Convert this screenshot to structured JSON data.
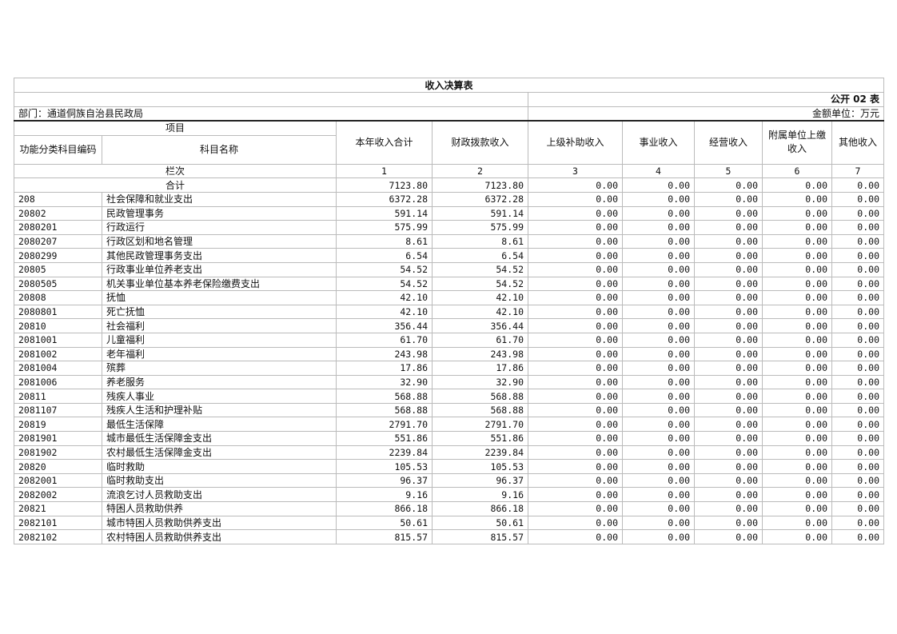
{
  "title": "收入决算表",
  "table_no": "公开 02 表",
  "department": "部门：通道侗族自治县民政局",
  "unit": "金额单位：万元",
  "header": {
    "item": "项目",
    "code": "功能分类科目编码",
    "name": "科目名称",
    "cols": [
      "本年收入合计",
      "财政拨款收入",
      "上级补助收入",
      "事业收入",
      "经营收入",
      "附属单位上缴收入",
      "其他收入"
    ],
    "row_index_label": "栏次",
    "row_index": [
      "1",
      "2",
      "3",
      "4",
      "5",
      "6",
      "7"
    ]
  },
  "total": {
    "label": "合计",
    "values": [
      "7123.80",
      "7123.80",
      "0.00",
      "0.00",
      "0.00",
      "0.00",
      "0.00"
    ]
  },
  "rows": [
    {
      "code": "208",
      "name": "社会保障和就业支出",
      "values": [
        "6372.28",
        "6372.28",
        "0.00",
        "0.00",
        "0.00",
        "0.00",
        "0.00"
      ]
    },
    {
      "code": "20802",
      "name": "民政管理事务",
      "values": [
        "591.14",
        "591.14",
        "0.00",
        "0.00",
        "0.00",
        "0.00",
        "0.00"
      ]
    },
    {
      "code": "2080201",
      "name": "行政运行",
      "values": [
        "575.99",
        "575.99",
        "0.00",
        "0.00",
        "0.00",
        "0.00",
        "0.00"
      ]
    },
    {
      "code": "2080207",
      "name": "行政区划和地名管理",
      "values": [
        "8.61",
        "8.61",
        "0.00",
        "0.00",
        "0.00",
        "0.00",
        "0.00"
      ]
    },
    {
      "code": "2080299",
      "name": "其他民政管理事务支出",
      "values": [
        "6.54",
        "6.54",
        "0.00",
        "0.00",
        "0.00",
        "0.00",
        "0.00"
      ]
    },
    {
      "code": "20805",
      "name": "行政事业单位养老支出",
      "values": [
        "54.52",
        "54.52",
        "0.00",
        "0.00",
        "0.00",
        "0.00",
        "0.00"
      ]
    },
    {
      "code": "2080505",
      "name": "机关事业单位基本养老保险缴费支出",
      "values": [
        "54.52",
        "54.52",
        "0.00",
        "0.00",
        "0.00",
        "0.00",
        "0.00"
      ]
    },
    {
      "code": "20808",
      "name": "抚恤",
      "values": [
        "42.10",
        "42.10",
        "0.00",
        "0.00",
        "0.00",
        "0.00",
        "0.00"
      ]
    },
    {
      "code": "2080801",
      "name": "死亡抚恤",
      "values": [
        "42.10",
        "42.10",
        "0.00",
        "0.00",
        "0.00",
        "0.00",
        "0.00"
      ]
    },
    {
      "code": "20810",
      "name": "社会福利",
      "values": [
        "356.44",
        "356.44",
        "0.00",
        "0.00",
        "0.00",
        "0.00",
        "0.00"
      ]
    },
    {
      "code": "2081001",
      "name": "儿童福利",
      "values": [
        "61.70",
        "61.70",
        "0.00",
        "0.00",
        "0.00",
        "0.00",
        "0.00"
      ]
    },
    {
      "code": "2081002",
      "name": "老年福利",
      "values": [
        "243.98",
        "243.98",
        "0.00",
        "0.00",
        "0.00",
        "0.00",
        "0.00"
      ]
    },
    {
      "code": "2081004",
      "name": "殡葬",
      "values": [
        "17.86",
        "17.86",
        "0.00",
        "0.00",
        "0.00",
        "0.00",
        "0.00"
      ]
    },
    {
      "code": "2081006",
      "name": "养老服务",
      "values": [
        "32.90",
        "32.90",
        "0.00",
        "0.00",
        "0.00",
        "0.00",
        "0.00"
      ]
    },
    {
      "code": "20811",
      "name": "残疾人事业",
      "values": [
        "568.88",
        "568.88",
        "0.00",
        "0.00",
        "0.00",
        "0.00",
        "0.00"
      ]
    },
    {
      "code": "2081107",
      "name": "残疾人生活和护理补贴",
      "values": [
        "568.88",
        "568.88",
        "0.00",
        "0.00",
        "0.00",
        "0.00",
        "0.00"
      ]
    },
    {
      "code": "20819",
      "name": "最低生活保障",
      "values": [
        "2791.70",
        "2791.70",
        "0.00",
        "0.00",
        "0.00",
        "0.00",
        "0.00"
      ]
    },
    {
      "code": "2081901",
      "name": "城市最低生活保障金支出",
      "values": [
        "551.86",
        "551.86",
        "0.00",
        "0.00",
        "0.00",
        "0.00",
        "0.00"
      ]
    },
    {
      "code": "2081902",
      "name": "农村最低生活保障金支出",
      "values": [
        "2239.84",
        "2239.84",
        "0.00",
        "0.00",
        "0.00",
        "0.00",
        "0.00"
      ]
    },
    {
      "code": "20820",
      "name": "临时救助",
      "values": [
        "105.53",
        "105.53",
        "0.00",
        "0.00",
        "0.00",
        "0.00",
        "0.00"
      ]
    },
    {
      "code": "2082001",
      "name": "临时救助支出",
      "values": [
        "96.37",
        "96.37",
        "0.00",
        "0.00",
        "0.00",
        "0.00",
        "0.00"
      ]
    },
    {
      "code": "2082002",
      "name": "流浪乞讨人员救助支出",
      "values": [
        "9.16",
        "9.16",
        "0.00",
        "0.00",
        "0.00",
        "0.00",
        "0.00"
      ]
    },
    {
      "code": "20821",
      "name": "特困人员救助供养",
      "values": [
        "866.18",
        "866.18",
        "0.00",
        "0.00",
        "0.00",
        "0.00",
        "0.00"
      ]
    },
    {
      "code": "2082101",
      "name": "城市特困人员救助供养支出",
      "values": [
        "50.61",
        "50.61",
        "0.00",
        "0.00",
        "0.00",
        "0.00",
        "0.00"
      ]
    },
    {
      "code": "2082102",
      "name": "农村特困人员救助供养支出",
      "values": [
        "815.57",
        "815.57",
        "0.00",
        "0.00",
        "0.00",
        "0.00",
        "0.00"
      ]
    }
  ]
}
